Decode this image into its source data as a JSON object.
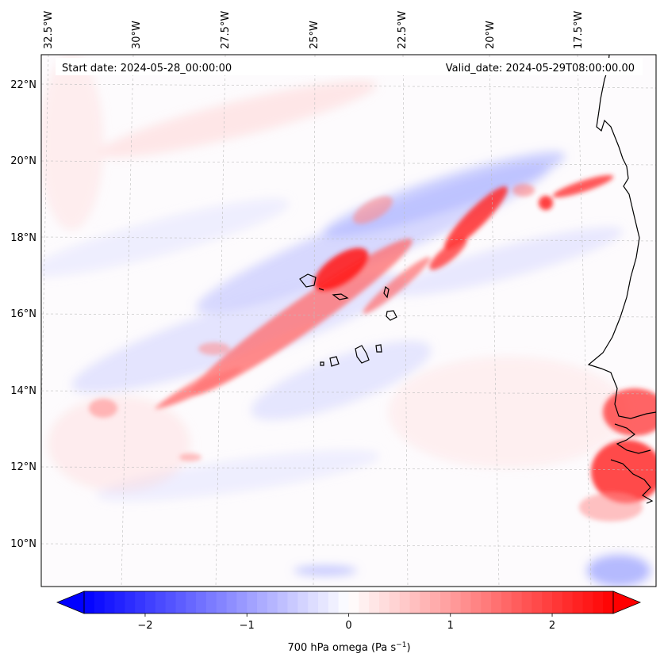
{
  "header": {
    "start_date": "Start date: 2024-05-28_00:00:00",
    "valid_date": "Valid_date: 2024-05-29T08:00:00.00"
  },
  "map": {
    "lon_labels": [
      "32.5°W",
      "30°W",
      "27.5°W",
      "25°W",
      "22.5°W",
      "20°W",
      "17.5°W"
    ],
    "lat_labels": [
      "22°N",
      "20°N",
      "18°N",
      "16°N",
      "14°N",
      "12°N",
      "10°N"
    ],
    "field": "700 hPa omega",
    "colors": {
      "positive": "#ff0000",
      "negative": "#0000ff",
      "neutral": "#ffffff",
      "coastline": "#000000"
    }
  },
  "colorbar": {
    "ticks": [
      "−2",
      "−1",
      "0",
      "1",
      "2"
    ],
    "tick_values": [
      -2,
      -1,
      0,
      1,
      2
    ],
    "range": [
      -2.6,
      2.6
    ],
    "label": "700 hPa omega (Pa s",
    "label_sup": "−1",
    "label_end": ")"
  }
}
